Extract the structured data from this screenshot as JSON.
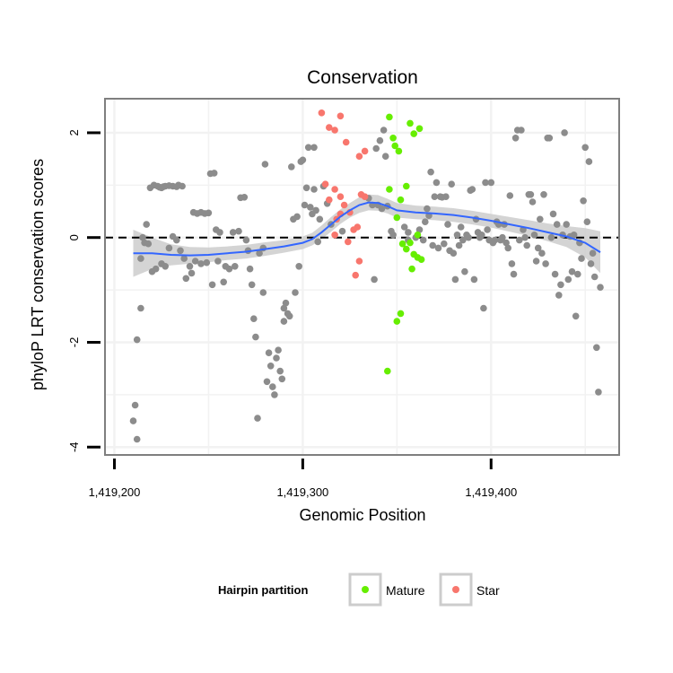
{
  "colors": {
    "panel_border": "#7f7f7f",
    "grid": "#f2f2f2",
    "other_points": "#8c8c8c",
    "mature": "#66ee00",
    "star": "#f8766d",
    "smooth_line": "#3366ff",
    "ribbon": "#cccccc",
    "axis_ticks": "#000000"
  },
  "chart_data": {
    "type": "scatter",
    "title": "Conservation",
    "xlabel": "Genomic Position",
    "ylabel": "phyloP LRT conservation scores",
    "xlim": [
      1419195,
      1419468
    ],
    "ylim": [
      -4.15,
      2.65
    ],
    "x_ticks": [
      {
        "value": 1419200,
        "label": "1,419,200"
      },
      {
        "value": 1419300,
        "label": "1,419,300"
      },
      {
        "value": 1419400,
        "label": "1,419,400"
      }
    ],
    "y_ticks": [
      {
        "value": -4,
        "label": "-4"
      },
      {
        "value": -2,
        "label": "-2"
      },
      {
        "value": 0,
        "label": "0"
      },
      {
        "value": 2,
        "label": "2"
      }
    ],
    "reference_line": {
      "y": 0,
      "style": "dashed"
    },
    "grid": true,
    "legend": {
      "title": "Hairpin partition",
      "position": "bottom",
      "entries": [
        {
          "label": "Mature",
          "series": "mature"
        },
        {
          "label": "Star",
          "series": "star"
        }
      ]
    },
    "series": [
      {
        "name": "Mature",
        "key": "mature",
        "points": [
          [
            1419346,
            2.3
          ],
          [
            1419348,
            1.9
          ],
          [
            1419349,
            1.75
          ],
          [
            1419351,
            1.65
          ],
          [
            1419346,
            0.92
          ],
          [
            1419350,
            0.38
          ],
          [
            1419352,
            0.72
          ],
          [
            1419355,
            0.98
          ],
          [
            1419357,
            2.18
          ],
          [
            1419359,
            1.98
          ],
          [
            1419362,
            2.08
          ],
          [
            1419361,
            0.05
          ],
          [
            1419357,
            -0.1
          ],
          [
            1419353,
            -0.12
          ],
          [
            1419355,
            -0.22
          ],
          [
            1419359,
            -0.32
          ],
          [
            1419361,
            -0.38
          ],
          [
            1419363,
            -0.42
          ],
          [
            1419358,
            -0.6
          ],
          [
            1419352,
            -1.45
          ],
          [
            1419350,
            -1.6
          ],
          [
            1419345,
            -2.55
          ]
        ]
      },
      {
        "name": "Star",
        "key": "star",
        "points": [
          [
            1419310,
            2.38
          ],
          [
            1419314,
            2.1
          ],
          [
            1419317,
            2.05
          ],
          [
            1419320,
            2.32
          ],
          [
            1419323,
            1.82
          ],
          [
            1419330,
            1.55
          ],
          [
            1419333,
            1.65
          ],
          [
            1419312,
            1.02
          ],
          [
            1419314,
            0.72
          ],
          [
            1419317,
            0.92
          ],
          [
            1419320,
            0.78
          ],
          [
            1419322,
            0.62
          ],
          [
            1419320,
            0.45
          ],
          [
            1419318,
            0.35
          ],
          [
            1419325,
            0.48
          ],
          [
            1419327,
            0.15
          ],
          [
            1419329,
            0.2
          ],
          [
            1419317,
            0.05
          ],
          [
            1419324,
            -0.08
          ],
          [
            1419330,
            -0.45
          ],
          [
            1419328,
            -0.72
          ],
          [
            1419331,
            0.82
          ],
          [
            1419333,
            0.78
          ]
        ]
      },
      {
        "name": "",
        "key": "other",
        "points": [
          [
            1419210,
            -3.5
          ],
          [
            1419211,
            -3.2
          ],
          [
            1419212,
            -3.85
          ],
          [
            1419212,
            -1.95
          ],
          [
            1419214,
            -1.35
          ],
          [
            1419215,
            0.0
          ],
          [
            1419214,
            -0.4
          ],
          [
            1419216,
            -0.1
          ],
          [
            1419217,
            0.25
          ],
          [
            1419218,
            -0.12
          ],
          [
            1419219,
            0.95
          ],
          [
            1419221,
            1.0
          ],
          [
            1419223,
            0.98
          ],
          [
            1419224,
            0.96
          ],
          [
            1419225,
            0.95
          ],
          [
            1419226,
            0.97
          ],
          [
            1419227,
            0.98
          ],
          [
            1419229,
            0.99
          ],
          [
            1419231,
            0.98
          ],
          [
            1419233,
            0.97
          ],
          [
            1419234,
            1.0
          ],
          [
            1419236,
            0.98
          ],
          [
            1419220,
            -0.65
          ],
          [
            1419222,
            -0.6
          ],
          [
            1419225,
            -0.5
          ],
          [
            1419227,
            -0.55
          ],
          [
            1419229,
            -0.2
          ],
          [
            1419231,
            0.02
          ],
          [
            1419233,
            -0.05
          ],
          [
            1419235,
            -0.25
          ],
          [
            1419237,
            -0.4
          ],
          [
            1419238,
            -0.78
          ],
          [
            1419240,
            -0.55
          ],
          [
            1419241,
            -0.68
          ],
          [
            1419242,
            0.48
          ],
          [
            1419244,
            0.46
          ],
          [
            1419246,
            0.48
          ],
          [
            1419248,
            0.46
          ],
          [
            1419250,
            0.47
          ],
          [
            1419243,
            -0.45
          ],
          [
            1419246,
            -0.5
          ],
          [
            1419249,
            -0.48
          ],
          [
            1419251,
            1.22
          ],
          [
            1419253,
            1.23
          ],
          [
            1419252,
            -0.9
          ],
          [
            1419254,
            0.15
          ],
          [
            1419256,
            0.1
          ],
          [
            1419255,
            -0.45
          ],
          [
            1419258,
            -0.85
          ],
          [
            1419259,
            -0.55
          ],
          [
            1419261,
            -0.6
          ],
          [
            1419263,
            0.1
          ],
          [
            1419264,
            -0.55
          ],
          [
            1419266,
            0.12
          ],
          [
            1419267,
            0.76
          ],
          [
            1419269,
            0.77
          ],
          [
            1419270,
            -0.05
          ],
          [
            1419271,
            -0.25
          ],
          [
            1419272,
            -0.6
          ],
          [
            1419273,
            -0.9
          ],
          [
            1419274,
            -1.55
          ],
          [
            1419275,
            -1.9
          ],
          [
            1419276,
            -3.45
          ],
          [
            1419277,
            -0.3
          ],
          [
            1419279,
            -0.2
          ],
          [
            1419279,
            -1.05
          ],
          [
            1419280,
            1.4
          ],
          [
            1419281,
            -2.75
          ],
          [
            1419282,
            -2.2
          ],
          [
            1419283,
            -2.45
          ],
          [
            1419284,
            -2.85
          ],
          [
            1419285,
            -3.0
          ],
          [
            1419286,
            -2.3
          ],
          [
            1419287,
            -2.15
          ],
          [
            1419288,
            -2.55
          ],
          [
            1419289,
            -2.7
          ],
          [
            1419290,
            -1.6
          ],
          [
            1419290,
            -1.35
          ],
          [
            1419291,
            -1.25
          ],
          [
            1419292,
            -1.45
          ],
          [
            1419293,
            -1.5
          ],
          [
            1419294,
            1.35
          ],
          [
            1419295,
            0.35
          ],
          [
            1419296,
            -1.05
          ],
          [
            1419297,
            0.4
          ],
          [
            1419298,
            -0.55
          ],
          [
            1419299,
            1.45
          ],
          [
            1419300,
            1.48
          ],
          [
            1419301,
            0.62
          ],
          [
            1419302,
            0.95
          ],
          [
            1419303,
            1.72
          ],
          [
            1419304,
            0.58
          ],
          [
            1419305,
            0.45
          ],
          [
            1419306,
            0.92
          ],
          [
            1419306,
            1.72
          ],
          [
            1419307,
            0.52
          ],
          [
            1419308,
            -0.08
          ],
          [
            1419309,
            0.35
          ],
          [
            1419311,
            0.98
          ],
          [
            1419313,
            0.65
          ],
          [
            1419315,
            0.25
          ],
          [
            1419321,
            0.12
          ],
          [
            1419335,
            0.75
          ],
          [
            1419337,
            0.62
          ],
          [
            1419338,
            -0.8
          ],
          [
            1419339,
            1.7
          ],
          [
            1419340,
            0.62
          ],
          [
            1419341,
            1.85
          ],
          [
            1419342,
            0.55
          ],
          [
            1419343,
            2.05
          ],
          [
            1419344,
            1.55
          ],
          [
            1419345,
            0.6
          ],
          [
            1419347,
            0.12
          ],
          [
            1419348,
            0.05
          ],
          [
            1419354,
            0.2
          ],
          [
            1419356,
            0.1
          ],
          [
            1419356,
            -0.05
          ],
          [
            1419360,
            0.0
          ],
          [
            1419362,
            0.15
          ],
          [
            1419364,
            -0.05
          ],
          [
            1419365,
            0.3
          ],
          [
            1419366,
            0.55
          ],
          [
            1419367,
            0.42
          ],
          [
            1419368,
            1.25
          ],
          [
            1419369,
            -0.15
          ],
          [
            1419370,
            0.78
          ],
          [
            1419371,
            1.05
          ],
          [
            1419372,
            -0.2
          ],
          [
            1419373,
            0.78
          ],
          [
            1419374,
            0.77
          ],
          [
            1419375,
            -0.12
          ],
          [
            1419376,
            0.78
          ],
          [
            1419377,
            0.25
          ],
          [
            1419378,
            -0.25
          ],
          [
            1419379,
            1.02
          ],
          [
            1419380,
            -0.3
          ],
          [
            1419381,
            -0.8
          ],
          [
            1419382,
            0.05
          ],
          [
            1419383,
            -0.15
          ],
          [
            1419384,
            0.2
          ],
          [
            1419385,
            -0.05
          ],
          [
            1419386,
            -0.65
          ],
          [
            1419387,
            0.05
          ],
          [
            1419388,
            0.0
          ],
          [
            1419389,
            0.9
          ],
          [
            1419390,
            0.92
          ],
          [
            1419391,
            -0.8
          ],
          [
            1419392,
            0.35
          ],
          [
            1419393,
            0.1
          ],
          [
            1419394,
            0.0
          ],
          [
            1419395,
            0.05
          ],
          [
            1419396,
            -1.35
          ],
          [
            1419397,
            1.05
          ],
          [
            1419398,
            0.15
          ],
          [
            1419399,
            -0.05
          ],
          [
            1419400,
            1.05
          ],
          [
            1419401,
            -0.1
          ],
          [
            1419402,
            -0.05
          ],
          [
            1419403,
            0.3
          ],
          [
            1419404,
            0.25
          ],
          [
            1419405,
            -0.05
          ],
          [
            1419406,
            0.0
          ],
          [
            1419407,
            0.25
          ],
          [
            1419408,
            -0.1
          ],
          [
            1419409,
            -0.2
          ],
          [
            1419410,
            0.8
          ],
          [
            1419411,
            -0.5
          ],
          [
            1419412,
            -0.7
          ],
          [
            1419413,
            1.9
          ],
          [
            1419414,
            2.05
          ],
          [
            1419415,
            -0.05
          ],
          [
            1419416,
            2.05
          ],
          [
            1419417,
            0.15
          ],
          [
            1419418,
            0.0
          ],
          [
            1419419,
            -0.15
          ],
          [
            1419420,
            0.82
          ],
          [
            1419421,
            0.82
          ],
          [
            1419422,
            0.68
          ],
          [
            1419423,
            0.05
          ],
          [
            1419424,
            -0.45
          ],
          [
            1419425,
            -0.2
          ],
          [
            1419426,
            0.35
          ],
          [
            1419427,
            -0.3
          ],
          [
            1419428,
            0.82
          ],
          [
            1419429,
            -0.5
          ],
          [
            1419430,
            1.9
          ],
          [
            1419431,
            1.9
          ],
          [
            1419432,
            0.0
          ],
          [
            1419433,
            0.45
          ],
          [
            1419434,
            -0.7
          ],
          [
            1419435,
            0.25
          ],
          [
            1419436,
            -1.1
          ],
          [
            1419437,
            -0.9
          ],
          [
            1419438,
            0.05
          ],
          [
            1419439,
            2.0
          ],
          [
            1419440,
            0.25
          ],
          [
            1419441,
            -0.8
          ],
          [
            1419442,
            0.02
          ],
          [
            1419443,
            -0.65
          ],
          [
            1419444,
            0.05
          ],
          [
            1419445,
            -1.5
          ],
          [
            1419446,
            -0.7
          ],
          [
            1419447,
            -0.1
          ],
          [
            1419448,
            -0.4
          ],
          [
            1419449,
            0.7
          ],
          [
            1419450,
            1.72
          ],
          [
            1419451,
            0.3
          ],
          [
            1419452,
            1.45
          ],
          [
            1419453,
            -0.5
          ],
          [
            1419454,
            -0.3
          ],
          [
            1419455,
            -0.75
          ],
          [
            1419456,
            -2.1
          ],
          [
            1419457,
            -2.95
          ],
          [
            1419458,
            -0.95
          ]
        ]
      }
    ],
    "smooth": {
      "method": "loess",
      "x": [
        1419210,
        1419220,
        1419230,
        1419240,
        1419250,
        1419260,
        1419270,
        1419280,
        1419290,
        1419300,
        1419305,
        1419310,
        1419315,
        1419320,
        1419325,
        1419330,
        1419335,
        1419340,
        1419345,
        1419350,
        1419360,
        1419370,
        1419380,
        1419390,
        1419400,
        1419410,
        1419420,
        1419430,
        1419440,
        1419450,
        1419458
      ],
      "y": [
        -0.3,
        -0.3,
        -0.33,
        -0.34,
        -0.33,
        -0.3,
        -0.27,
        -0.22,
        -0.17,
        -0.1,
        -0.03,
        0.1,
        0.25,
        0.4,
        0.52,
        0.62,
        0.67,
        0.66,
        0.6,
        0.52,
        0.48,
        0.46,
        0.43,
        0.38,
        0.32,
        0.25,
        0.18,
        0.1,
        0.02,
        -0.1,
        -0.28
      ],
      "se": [
        0.45,
        0.3,
        0.2,
        0.16,
        0.14,
        0.13,
        0.13,
        0.13,
        0.12,
        0.12,
        0.12,
        0.13,
        0.14,
        0.14,
        0.14,
        0.15,
        0.15,
        0.15,
        0.14,
        0.14,
        0.13,
        0.13,
        0.13,
        0.13,
        0.13,
        0.14,
        0.15,
        0.17,
        0.2,
        0.28,
        0.4
      ]
    }
  }
}
